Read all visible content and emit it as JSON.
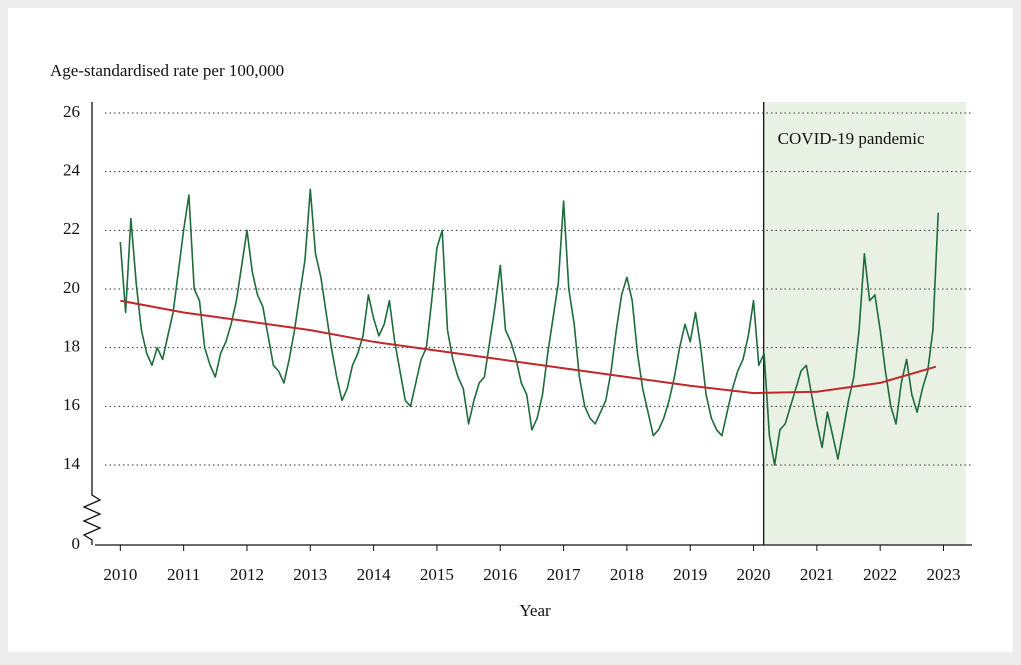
{
  "chart_data": {
    "type": "line",
    "ylabel": "Age-standardised rate per 100,000",
    "xlabel": "Year",
    "xlim": [
      2009.6,
      2023.45
    ],
    "xticks": [
      2010,
      2011,
      2012,
      2013,
      2014,
      2015,
      2016,
      2017,
      2018,
      2019,
      2020,
      2021,
      2022,
      2023
    ],
    "ylim": [
      0,
      26
    ],
    "ybreak": [
      0,
      14
    ],
    "yticks": [
      0,
      14,
      16,
      18,
      20,
      22,
      24,
      26
    ],
    "grid": true,
    "shade": {
      "x": [
        2020.16,
        2023.35
      ],
      "label": "COVID-19 pandemic",
      "color": "#e8f1e4"
    },
    "series": [
      {
        "color": "#1e6b3c",
        "x": [
          2010,
          2010.083,
          2010.167,
          2010.25,
          2010.333,
          2010.417,
          2010.5,
          2010.583,
          2010.667,
          2010.75,
          2010.833,
          2010.917,
          2011,
          2011.083,
          2011.167,
          2011.25,
          2011.333,
          2011.417,
          2011.5,
          2011.583,
          2011.667,
          2011.75,
          2011.833,
          2011.917,
          2012,
          2012.083,
          2012.167,
          2012.25,
          2012.333,
          2012.417,
          2012.5,
          2012.583,
          2012.667,
          2012.75,
          2012.833,
          2012.917,
          2013,
          2013.083,
          2013.167,
          2013.25,
          2013.333,
          2013.417,
          2013.5,
          2013.583,
          2013.667,
          2013.75,
          2013.833,
          2013.917,
          2014,
          2014.083,
          2014.167,
          2014.25,
          2014.333,
          2014.417,
          2014.5,
          2014.583,
          2014.667,
          2014.75,
          2014.833,
          2014.917,
          2015,
          2015.083,
          2015.167,
          2015.25,
          2015.333,
          2015.417,
          2015.5,
          2015.583,
          2015.667,
          2015.75,
          2015.833,
          2015.917,
          2016,
          2016.083,
          2016.167,
          2016.25,
          2016.333,
          2016.417,
          2016.5,
          2016.583,
          2016.667,
          2016.75,
          2016.833,
          2016.917,
          2017,
          2017.083,
          2017.167,
          2017.25,
          2017.333,
          2017.417,
          2017.5,
          2017.583,
          2017.667,
          2017.75,
          2017.833,
          2017.917,
          2018,
          2018.083,
          2018.167,
          2018.25,
          2018.333,
          2018.417,
          2018.5,
          2018.583,
          2018.667,
          2018.75,
          2018.833,
          2018.917,
          2019,
          2019.083,
          2019.167,
          2019.25,
          2019.333,
          2019.417,
          2019.5,
          2019.583,
          2019.667,
          2019.75,
          2019.833,
          2019.917,
          2020,
          2020.083,
          2020.167,
          2020.25,
          2020.333,
          2020.417,
          2020.5,
          2020.583,
          2020.667,
          2020.75,
          2020.833,
          2020.917,
          2021,
          2021.083,
          2021.167,
          2021.25,
          2021.333,
          2021.417,
          2021.5,
          2021.583,
          2021.667,
          2021.75,
          2021.833,
          2021.917,
          2022,
          2022.083,
          2022.167,
          2022.25,
          2022.333,
          2022.417,
          2022.5,
          2022.583,
          2022.667,
          2022.75,
          2022.833,
          2022.917
        ],
        "values": [
          21.6,
          19.2,
          22.4,
          20.2,
          18.6,
          17.8,
          17.4,
          18.0,
          17.6,
          18.4,
          19.2,
          20.6,
          22.0,
          23.2,
          20.0,
          19.6,
          18.0,
          17.4,
          17.0,
          17.8,
          18.2,
          18.8,
          19.6,
          20.8,
          22.0,
          20.6,
          19.8,
          19.4,
          18.4,
          17.4,
          17.2,
          16.8,
          17.6,
          18.6,
          19.8,
          21.0,
          23.4,
          21.2,
          20.4,
          19.2,
          18.0,
          17.0,
          16.2,
          16.6,
          17.4,
          17.8,
          18.4,
          19.8,
          19.0,
          18.4,
          18.8,
          19.6,
          18.2,
          17.2,
          16.2,
          16.0,
          16.8,
          17.6,
          18.0,
          19.6,
          21.4,
          22.0,
          18.6,
          17.6,
          17.0,
          16.6,
          15.4,
          16.2,
          16.8,
          17.0,
          18.2,
          19.4,
          20.8,
          18.6,
          18.2,
          17.6,
          16.8,
          16.4,
          15.2,
          15.6,
          16.4,
          17.8,
          19.0,
          20.2,
          23.0,
          20.0,
          18.8,
          17.0,
          16.0,
          15.6,
          15.4,
          15.8,
          16.2,
          17.2,
          18.6,
          19.8,
          20.4,
          19.6,
          17.8,
          16.6,
          15.8,
          15.0,
          15.2,
          15.6,
          16.2,
          17.0,
          18.0,
          18.8,
          18.2,
          19.2,
          18.0,
          16.4,
          15.6,
          15.2,
          15.0,
          15.8,
          16.6,
          17.2,
          17.6,
          18.4,
          19.6,
          17.4,
          17.8,
          15.0,
          14.0,
          15.2,
          15.4,
          16.0,
          16.6,
          17.2,
          17.4,
          16.4,
          15.4,
          14.6,
          15.8,
          15.0,
          14.2,
          15.2,
          16.2,
          17.0,
          18.6,
          21.2,
          19.6,
          19.8,
          18.6,
          17.2,
          16.0,
          15.4,
          16.8,
          17.6,
          16.4,
          15.8,
          16.6,
          17.2,
          18.6,
          22.6
        ]
      },
      {
        "color": "#c0282b",
        "x": [
          2010,
          2011,
          2012,
          2013,
          2014,
          2015,
          2016,
          2017,
          2018,
          2019,
          2020,
          2021,
          2022,
          2022.88
        ],
        "values": [
          19.6,
          19.2,
          18.9,
          18.6,
          18.2,
          17.9,
          17.6,
          17.3,
          17.0,
          16.7,
          16.45,
          16.5,
          16.8,
          17.35
        ]
      }
    ]
  }
}
